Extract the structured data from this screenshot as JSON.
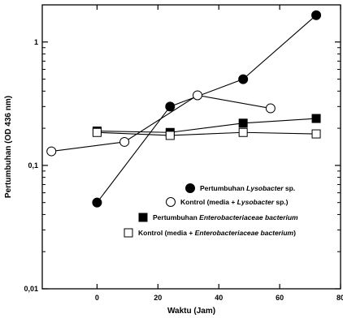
{
  "chart_data": {
    "type": "line",
    "title": "",
    "xlabel": "Waktu (Jam)",
    "ylabel": "Pertumbuhan (OD 436 nm)",
    "xlim": [
      -18,
      80
    ],
    "ylim": [
      0.01,
      2.0
    ],
    "yscale": "log",
    "x_ticks": [
      0,
      20,
      40,
      60,
      80
    ],
    "x_tick_labels": [
      "0",
      "20",
      "40",
      "60",
      "80"
    ],
    "y_ticks": [
      0.01,
      0.1,
      1
    ],
    "y_tick_labels": [
      "0,01",
      "0,1",
      "1"
    ],
    "grid": false,
    "legend_position": "lower-right",
    "series": [
      {
        "marker": "circle-filled",
        "legend_parts": [
          [
            "Pertumbuhan ",
            false
          ],
          [
            "Lysobacter",
            true
          ],
          [
            " sp.",
            false
          ]
        ],
        "x": [
          0,
          24,
          48,
          72
        ],
        "y": [
          0.05,
          0.3,
          0.5,
          1.65
        ]
      },
      {
        "marker": "circle-open",
        "legend_parts": [
          [
            "Kontrol (media + ",
            false
          ],
          [
            "Lysobacter",
            true
          ],
          [
            " sp.)",
            false
          ]
        ],
        "x": [
          -15,
          9,
          33,
          57
        ],
        "y": [
          0.13,
          0.155,
          0.37,
          0.29
        ]
      },
      {
        "marker": "square-filled",
        "legend_parts": [
          [
            "Pertumbuhan ",
            false
          ],
          [
            "Enterobacteriaceae bacterium",
            true
          ]
        ],
        "x": [
          0,
          24,
          48,
          72
        ],
        "y": [
          0.19,
          0.185,
          0.22,
          0.24
        ]
      },
      {
        "marker": "square-open",
        "legend_parts": [
          [
            "Kontrol (media + ",
            false
          ],
          [
            "Enterobacteriaceae bacterium",
            true
          ],
          [
            ")",
            false
          ]
        ],
        "x": [
          0,
          24,
          48,
          72
        ],
        "y": [
          0.185,
          0.175,
          0.185,
          0.18
        ]
      }
    ]
  }
}
